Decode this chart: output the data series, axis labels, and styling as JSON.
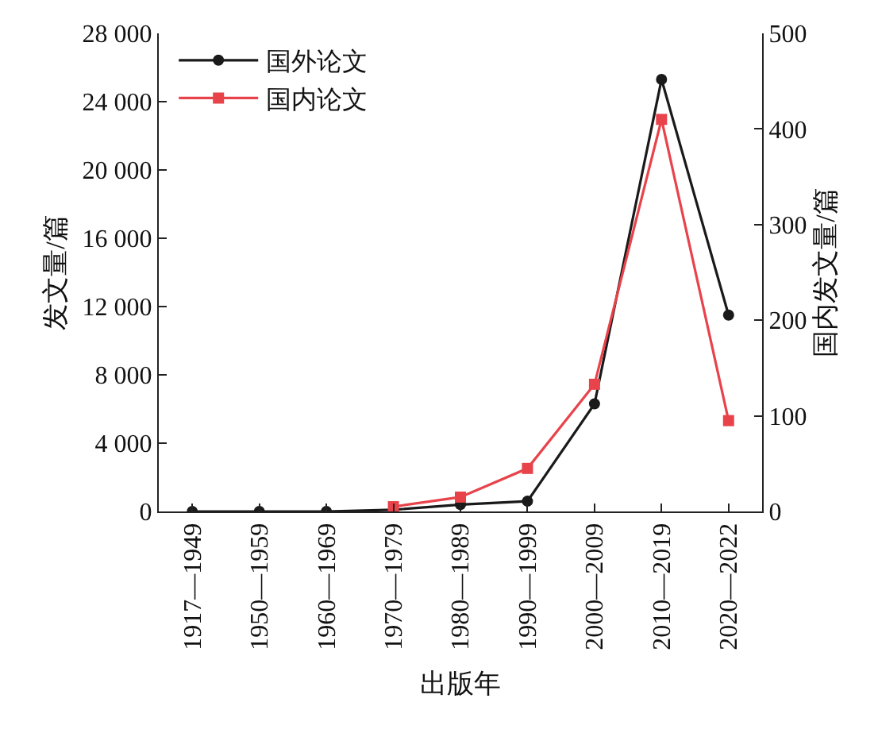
{
  "chart_data": {
    "type": "line",
    "xlabel": "出版年",
    "ylabel": "发文量/篇",
    "y2label": "国内发文量/篇",
    "categories": [
      "1917—1949",
      "1950—1959",
      "1960—1969",
      "1970—1979",
      "1980—1989",
      "1990—1999",
      "2000—2009",
      "2010—2019",
      "2020—2022"
    ],
    "series": [
      {
        "name": "国外论文",
        "color": "#1a1a1a",
        "marker": "circle",
        "values": [
          0,
          0,
          0,
          100,
          400,
          600,
          6300,
          25300,
          11500
        ]
      },
      {
        "name": "国内论文",
        "color": "#e8434b",
        "marker": "square",
        "axis": "y2",
        "values": [
          null,
          null,
          null,
          5,
          15,
          45,
          133,
          410,
          95
        ]
      }
    ],
    "ylim": [
      0,
      28000
    ],
    "yticks": [
      {
        "value": 0,
        "label": "0"
      },
      {
        "value": 4000,
        "label": "4 000"
      },
      {
        "value": 8000,
        "label": "8 000"
      },
      {
        "value": 12000,
        "label": "12 000"
      },
      {
        "value": 16000,
        "label": "16 000"
      },
      {
        "value": 20000,
        "label": "20 000"
      },
      {
        "value": 24000,
        "label": "24 000"
      },
      {
        "value": 28000,
        "label": "28 000"
      }
    ],
    "y2lim": [
      0,
      500
    ],
    "y2ticks": [
      0,
      100,
      200,
      300,
      400,
      500
    ],
    "legend": "top left"
  }
}
